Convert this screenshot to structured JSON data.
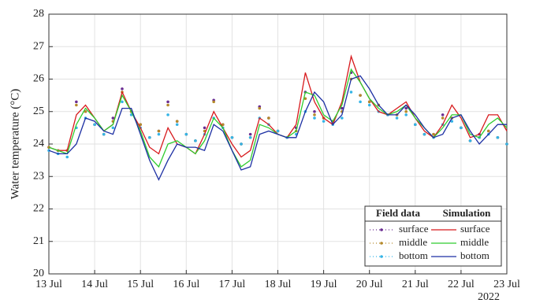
{
  "chart_data": {
    "type": "line",
    "y_label": "Water temperature (°C)",
    "x_year": "2022",
    "legend_titles": [
      "Field data",
      "Simulation"
    ],
    "legend_position": "lower right",
    "grid": true,
    "xlim": [
      0,
      10
    ],
    "ylim": [
      20,
      28
    ],
    "yticks": [
      20,
      21,
      22,
      23,
      24,
      25,
      26,
      27,
      28
    ],
    "xticks": [
      {
        "value": 0,
        "label": "13 Jul"
      },
      {
        "value": 1,
        "label": "14 Jul"
      },
      {
        "value": 2,
        "label": "15 Jul"
      },
      {
        "value": 3,
        "label": "16 Jul"
      },
      {
        "value": 4,
        "label": "17 Jul"
      },
      {
        "value": 5,
        "label": "18 Jul"
      },
      {
        "value": 6,
        "label": "19 Jul"
      },
      {
        "value": 7,
        "label": "20 Jul"
      },
      {
        "value": 8,
        "label": "21 Jul"
      },
      {
        "value": 9,
        "label": "22 Jul"
      },
      {
        "value": 10,
        "label": "23 Jul"
      }
    ],
    "x": [
      0,
      0.2,
      0.4,
      0.6,
      0.8,
      1,
      1.2,
      1.4,
      1.6,
      1.8,
      2,
      2.2,
      2.4,
      2.6,
      2.8,
      3,
      3.2,
      3.4,
      3.6,
      3.8,
      4,
      4.2,
      4.4,
      4.6,
      4.8,
      5,
      5.2,
      5.4,
      5.6,
      5.8,
      6,
      6.2,
      6.4,
      6.6,
      6.8,
      7,
      7.2,
      7.4,
      7.6,
      7.8,
      8,
      8.2,
      8.4,
      8.6,
      8.8,
      9,
      9.2,
      9.4,
      9.6,
      9.8,
      10
    ],
    "series": [
      {
        "name": "surface",
        "group": 0,
        "style": "dots",
        "color": "#6a2c91",
        "values": [
          23.9,
          23.8,
          23.8,
          25.3,
          25.0,
          24.6,
          24.3,
          24.8,
          25.7,
          25.0,
          24.6,
          24.2,
          24.4,
          25.3,
          24.7,
          24.3,
          24.1,
          24.5,
          25.35,
          24.6,
          24.2,
          24.0,
          24.3,
          25.15,
          24.8,
          24.4,
          24.2,
          24.5,
          25.6,
          25.0,
          24.8,
          24.7,
          25.1,
          26.2,
          25.5,
          25.3,
          25.2,
          24.9,
          24.9,
          25.1,
          24.6,
          24.3,
          24.3,
          24.9,
          24.8,
          24.5,
          24.1,
          24.3,
          24.4,
          24.2,
          24.0
        ]
      },
      {
        "name": "middle",
        "group": 0,
        "style": "dots",
        "color": "#b5892a",
        "values": [
          23.9,
          23.8,
          23.8,
          25.2,
          25.0,
          24.6,
          24.3,
          24.7,
          25.6,
          25.0,
          24.6,
          24.2,
          24.4,
          25.2,
          24.7,
          24.3,
          24.1,
          24.4,
          25.3,
          24.6,
          24.2,
          24.0,
          24.2,
          25.1,
          24.8,
          24.4,
          24.2,
          24.4,
          25.4,
          24.9,
          24.8,
          24.7,
          25.0,
          26.0,
          25.5,
          25.3,
          25.2,
          24.9,
          24.9,
          25.0,
          24.6,
          24.3,
          24.3,
          24.8,
          24.8,
          24.5,
          24.1,
          24.2,
          24.4,
          24.2,
          24.0
        ]
      },
      {
        "name": "bottom",
        "group": 0,
        "style": "dots",
        "color": "#35b4e6",
        "values": [
          23.8,
          23.7,
          23.6,
          24.5,
          24.8,
          24.6,
          24.3,
          24.5,
          25.3,
          24.9,
          24.5,
          24.2,
          24.3,
          24.9,
          24.6,
          24.3,
          24.1,
          24.3,
          24.8,
          24.5,
          24.2,
          24.0,
          24.2,
          24.8,
          24.6,
          24.4,
          24.2,
          24.3,
          25.0,
          24.8,
          24.7,
          24.6,
          24.8,
          25.6,
          25.3,
          25.2,
          25.0,
          24.9,
          24.8,
          24.9,
          24.6,
          24.3,
          24.2,
          24.6,
          24.7,
          24.5,
          24.1,
          24.2,
          24.3,
          24.2,
          24.0
        ]
      },
      {
        "name": "surface",
        "group": 1,
        "style": "line",
        "color": "#d7191c",
        "values": [
          23.9,
          23.8,
          23.8,
          24.9,
          25.2,
          24.8,
          24.4,
          24.6,
          25.6,
          25.0,
          24.5,
          23.9,
          23.7,
          24.5,
          24.0,
          23.9,
          23.7,
          24.3,
          25.0,
          24.5,
          24.0,
          23.6,
          23.8,
          24.8,
          24.6,
          24.3,
          24.2,
          24.6,
          26.2,
          25.3,
          24.8,
          24.6,
          25.3,
          26.7,
          25.9,
          25.4,
          25.0,
          24.9,
          25.1,
          25.3,
          24.8,
          24.4,
          24.2,
          24.6,
          25.2,
          24.8,
          24.2,
          24.3,
          24.9,
          24.9,
          24.4
        ]
      },
      {
        "name": "middle",
        "group": 1,
        "style": "line",
        "color": "#2ecc2e",
        "values": [
          23.9,
          23.8,
          23.7,
          24.6,
          25.1,
          24.8,
          24.4,
          24.6,
          25.5,
          25.0,
          24.4,
          23.6,
          23.3,
          24.0,
          24.1,
          23.9,
          23.7,
          24.1,
          24.8,
          24.5,
          23.8,
          23.3,
          23.5,
          24.6,
          24.5,
          24.3,
          24.2,
          24.4,
          25.6,
          25.5,
          24.9,
          24.7,
          25.2,
          26.3,
          25.9,
          25.4,
          25.1,
          24.9,
          25.0,
          25.2,
          24.8,
          24.5,
          24.2,
          24.5,
          24.9,
          24.9,
          24.3,
          24.2,
          24.6,
          24.8,
          24.5
        ]
      },
      {
        "name": "bottom",
        "group": 1,
        "style": "line",
        "color": "#1c2fa3",
        "values": [
          23.8,
          23.7,
          23.7,
          24.0,
          24.8,
          24.7,
          24.4,
          24.3,
          25.1,
          25.1,
          24.3,
          23.5,
          22.9,
          23.5,
          24.0,
          23.9,
          23.9,
          23.8,
          24.6,
          24.4,
          23.8,
          23.2,
          23.3,
          24.3,
          24.4,
          24.3,
          24.2,
          24.2,
          25.0,
          25.6,
          25.3,
          24.6,
          24.9,
          26.0,
          26.1,
          25.7,
          25.2,
          24.9,
          24.9,
          25.2,
          24.9,
          24.5,
          24.2,
          24.3,
          24.8,
          24.9,
          24.4,
          24.0,
          24.3,
          24.6,
          24.6
        ]
      }
    ]
  }
}
